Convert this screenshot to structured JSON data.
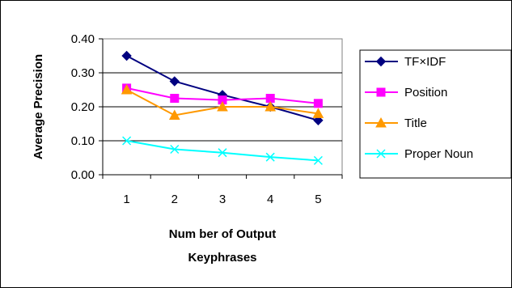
{
  "chart_data": {
    "type": "line",
    "title": "",
    "xlabel": "Number of Output Keyphrases",
    "xlabel_lines": [
      "Num ber of Output",
      "Keyphrases"
    ],
    "ylabel": "Average Precision",
    "categories": [
      "1",
      "2",
      "3",
      "4",
      "5"
    ],
    "ylim": [
      0,
      0.4
    ],
    "yticks": [
      "0.00",
      "0.10",
      "0.20",
      "0.30",
      "0.40"
    ],
    "grid": true,
    "legend_position": "right",
    "series": [
      {
        "name": "TF×IDF",
        "values": [
          0.35,
          0.275,
          0.235,
          0.2,
          0.16
        ],
        "color": "#000080",
        "marker": "diamond"
      },
      {
        "name": "Position",
        "values": [
          0.255,
          0.225,
          0.22,
          0.225,
          0.21
        ],
        "color": "#FF00FF",
        "marker": "square"
      },
      {
        "name": "Title",
        "values": [
          0.25,
          0.175,
          0.2,
          0.2,
          0.18
        ],
        "color": "#FF9900",
        "marker": "triangle"
      },
      {
        "name": "Proper Noun",
        "values": [
          0.1,
          0.075,
          0.065,
          0.052,
          0.042
        ],
        "color": "#00FFFF",
        "marker": "x"
      }
    ]
  }
}
